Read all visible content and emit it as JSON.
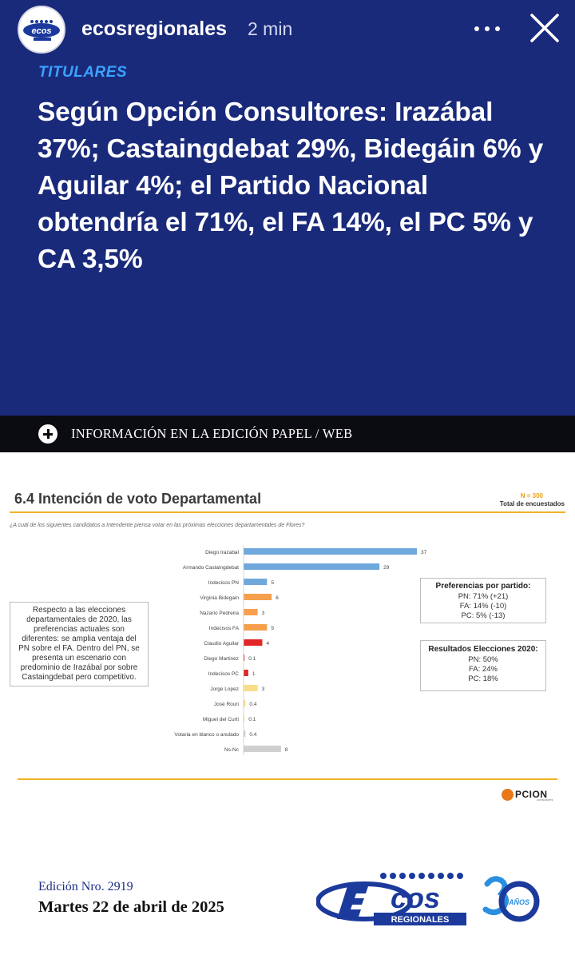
{
  "story": {
    "username": "ecosregionales",
    "time": "2 min"
  },
  "hero": {
    "kicker": "TITULARES",
    "headline": "Según Opción Consultores: Irazábal 37%; Castaingdebat 29%, Bidegáin 6% y Aguilar 4%; el Partido Nacional obtendría el 71%, el FA 14%, el PC 5% y CA 3,5%",
    "info": "INFORMACIÓN EN LA EDICIÓN PAPEL / WEB"
  },
  "slide": {
    "title": "6.4 Intención de voto Departamental",
    "n": "N = 300",
    "n_label": "Total de encuestados",
    "question": "¿A cuál de los siguientes candidatos a Intendente piensa votar en las próximas elecciones departamentales de Flores?",
    "callout": "Respecto a las elecciones departamentales de 2020, las preferencias actuales son diferentes: se amplia ventaja del PN sobre el FA. Dentro del PN, se presenta un escenario con predominio de Irazábal por sobre Castaingdebat pero competitivo.",
    "preferences": {
      "title": "Preferencias por partido:",
      "lines": [
        "PN: 71% (+21)",
        "FA: 14% (-10)",
        "PC: 5% (-13)"
      ]
    },
    "results": {
      "title": "Resultados Elecciones 2020:",
      "lines": [
        "PN: 50%",
        "FA: 24%",
        "PC: 18%"
      ]
    },
    "brand": "PCION",
    "brand_sub": "consultores"
  },
  "chart_data": {
    "type": "bar",
    "orientation": "horizontal",
    "categories": [
      "Diego Irazabal",
      "Armando Castaingdebat",
      "Indecisos PN",
      "Virginia Bidegain",
      "Nazario Pedreira",
      "Indecisos FA",
      "Claudio Aguilar",
      "Diego Martinez",
      "Indecisos PC",
      "Jorge Lopez",
      "José Rouri",
      "Miguel del Curti",
      "Votaria en blanco o anulado",
      "Ns-Nc"
    ],
    "values": [
      37,
      29,
      5,
      6,
      3,
      5,
      4,
      0.1,
      1,
      3,
      0.4,
      0.1,
      0.4,
      8
    ],
    "value_labels": [
      "37",
      "29",
      "5",
      "6",
      "3",
      "5",
      "4",
      "0.1",
      "1",
      "3",
      "0.4",
      "0.1",
      "0.4",
      "8"
    ],
    "colors": [
      "#6fa8dc",
      "#6fa8dc",
      "#6fa8dc",
      "#f6a04d",
      "#f6a04d",
      "#f6a04d",
      "#e02626",
      "#e02626",
      "#e02626",
      "#f9dd88",
      "#f9dd88",
      "#f9dd88",
      "#d0d0d0",
      "#d0d0d0"
    ],
    "xlim": [
      0,
      37
    ],
    "grid": false,
    "legend": "none"
  },
  "footer": {
    "edition": "Edición Nro. 2919",
    "date": "Martes 22 de abril de 2025",
    "logo_text": "REGIONALES",
    "anniversary": "AÑOS"
  }
}
